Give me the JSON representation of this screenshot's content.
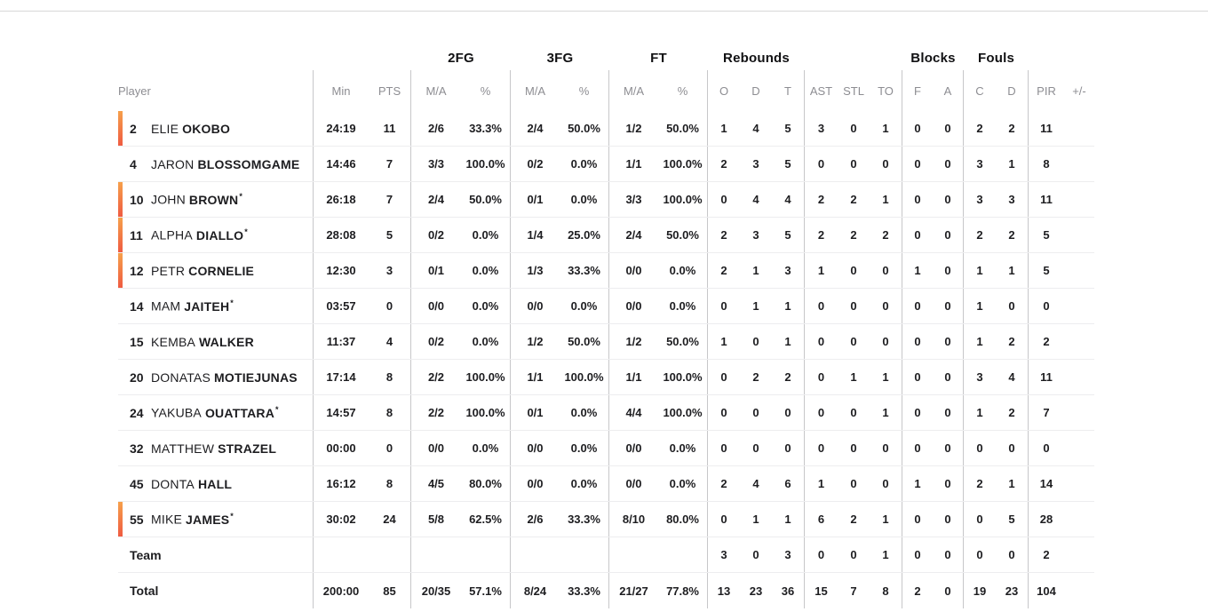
{
  "table": {
    "groups": {
      "fg2": "2FG",
      "fg3": "3FG",
      "ft": "FT",
      "reb": "Rebounds",
      "blocks": "Blocks",
      "fouls": "Fouls"
    },
    "player_header": "Player",
    "column_headers": [
      "Min",
      "PTS",
      "M/A",
      "%",
      "M/A",
      "%",
      "M/A",
      "%",
      "O",
      "D",
      "T",
      "AST",
      "STL",
      "TO",
      "F",
      "A",
      "C",
      "D",
      "PIR",
      "+/-"
    ],
    "column_names": [
      "min",
      "pts",
      "2fg-ma",
      "2fg-pct",
      "3fg-ma",
      "3fg-pct",
      "ft-ma",
      "ft-pct",
      "reb-o",
      "reb-d",
      "reb-t",
      "ast",
      "stl",
      "to",
      "blk-f",
      "blk-a",
      "foul-c",
      "foul-d",
      "pir",
      "plusminus"
    ],
    "players": [
      {
        "number": "2",
        "first": "ELIE",
        "last": "OKOBO",
        "starter": false,
        "oncourt": true,
        "stats": [
          "24:19",
          "11",
          "2/6",
          "33.3%",
          "2/4",
          "50.0%",
          "1/2",
          "50.0%",
          "1",
          "4",
          "5",
          "3",
          "0",
          "1",
          "0",
          "0",
          "2",
          "2",
          "11",
          ""
        ]
      },
      {
        "number": "4",
        "first": "JARON",
        "last": "BLOSSOMGAME",
        "starter": false,
        "oncourt": false,
        "stats": [
          "14:46",
          "7",
          "3/3",
          "100.0%",
          "0/2",
          "0.0%",
          "1/1",
          "100.0%",
          "2",
          "3",
          "5",
          "0",
          "0",
          "0",
          "0",
          "0",
          "3",
          "1",
          "8",
          ""
        ]
      },
      {
        "number": "10",
        "first": "JOHN",
        "last": "BROWN",
        "starter": true,
        "oncourt": true,
        "stats": [
          "26:18",
          "7",
          "2/4",
          "50.0%",
          "0/1",
          "0.0%",
          "3/3",
          "100.0%",
          "0",
          "4",
          "4",
          "2",
          "2",
          "1",
          "0",
          "0",
          "3",
          "3",
          "11",
          ""
        ]
      },
      {
        "number": "11",
        "first": "ALPHA",
        "last": "DIALLO",
        "starter": true,
        "oncourt": true,
        "stats": [
          "28:08",
          "5",
          "0/2",
          "0.0%",
          "1/4",
          "25.0%",
          "2/4",
          "50.0%",
          "2",
          "3",
          "5",
          "2",
          "2",
          "2",
          "0",
          "0",
          "2",
          "2",
          "5",
          ""
        ]
      },
      {
        "number": "12",
        "first": "PETR",
        "last": "CORNELIE",
        "starter": false,
        "oncourt": true,
        "stats": [
          "12:30",
          "3",
          "0/1",
          "0.0%",
          "1/3",
          "33.3%",
          "0/0",
          "0.0%",
          "2",
          "1",
          "3",
          "1",
          "0",
          "0",
          "1",
          "0",
          "1",
          "1",
          "5",
          ""
        ]
      },
      {
        "number": "14",
        "first": "MAM",
        "last": "JAITEH",
        "starter": true,
        "oncourt": false,
        "stats": [
          "03:57",
          "0",
          "0/0",
          "0.0%",
          "0/0",
          "0.0%",
          "0/0",
          "0.0%",
          "0",
          "1",
          "1",
          "0",
          "0",
          "0",
          "0",
          "0",
          "1",
          "0",
          "0",
          ""
        ]
      },
      {
        "number": "15",
        "first": "KEMBA",
        "last": "WALKER",
        "starter": false,
        "oncourt": false,
        "stats": [
          "11:37",
          "4",
          "0/2",
          "0.0%",
          "1/2",
          "50.0%",
          "1/2",
          "50.0%",
          "1",
          "0",
          "1",
          "0",
          "0",
          "0",
          "0",
          "0",
          "1",
          "2",
          "2",
          ""
        ]
      },
      {
        "number": "20",
        "first": "DONATAS",
        "last": "MOTIEJUNAS",
        "starter": false,
        "oncourt": false,
        "stats": [
          "17:14",
          "8",
          "2/2",
          "100.0%",
          "1/1",
          "100.0%",
          "1/1",
          "100.0%",
          "0",
          "2",
          "2",
          "0",
          "1",
          "1",
          "0",
          "0",
          "3",
          "4",
          "11",
          ""
        ]
      },
      {
        "number": "24",
        "first": "YAKUBA",
        "last": "OUATTARA",
        "starter": true,
        "oncourt": false,
        "stats": [
          "14:57",
          "8",
          "2/2",
          "100.0%",
          "0/1",
          "0.0%",
          "4/4",
          "100.0%",
          "0",
          "0",
          "0",
          "0",
          "0",
          "1",
          "0",
          "0",
          "1",
          "2",
          "7",
          ""
        ]
      },
      {
        "number": "32",
        "first": "MATTHEW",
        "last": "STRAZEL",
        "starter": false,
        "oncourt": false,
        "stats": [
          "00:00",
          "0",
          "0/0",
          "0.0%",
          "0/0",
          "0.0%",
          "0/0",
          "0.0%",
          "0",
          "0",
          "0",
          "0",
          "0",
          "0",
          "0",
          "0",
          "0",
          "0",
          "0",
          ""
        ]
      },
      {
        "number": "45",
        "first": "DONTA",
        "last": "HALL",
        "starter": false,
        "oncourt": false,
        "stats": [
          "16:12",
          "8",
          "4/5",
          "80.0%",
          "0/0",
          "0.0%",
          "0/0",
          "0.0%",
          "2",
          "4",
          "6",
          "1",
          "0",
          "0",
          "1",
          "0",
          "2",
          "1",
          "14",
          ""
        ]
      },
      {
        "number": "55",
        "first": "MIKE",
        "last": "JAMES",
        "starter": true,
        "oncourt": true,
        "stats": [
          "30:02",
          "24",
          "5/8",
          "62.5%",
          "2/6",
          "33.3%",
          "8/10",
          "80.0%",
          "0",
          "1",
          "1",
          "6",
          "2",
          "1",
          "0",
          "0",
          "0",
          "5",
          "28",
          ""
        ]
      }
    ],
    "team_row": {
      "label": "Team",
      "stats": [
        "",
        "",
        "",
        "",
        "",
        "",
        "",
        "",
        "3",
        "0",
        "3",
        "0",
        "0",
        "1",
        "0",
        "0",
        "0",
        "0",
        "2",
        ""
      ]
    },
    "total_row": {
      "label": "Total",
      "stats": [
        "200:00",
        "85",
        "20/35",
        "57.1%",
        "8/24",
        "33.3%",
        "21/27",
        "77.8%",
        "13",
        "23",
        "36",
        "15",
        "7",
        "8",
        "2",
        "0",
        "19",
        "23",
        "104",
        ""
      ]
    }
  }
}
